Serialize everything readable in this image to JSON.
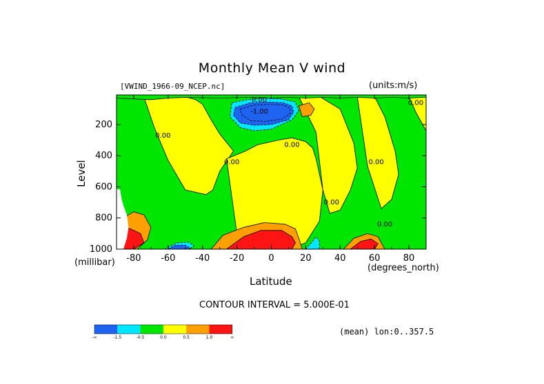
{
  "chart_data": {
    "type": "heatmap",
    "title": "Monthly Mean V wind",
    "file_label": "[VWIND_1966-09_NCEP.nc]",
    "units_label": "(units:m/s)",
    "xlabel": "Latitude",
    "x_unit_label": "(degrees_north)",
    "ylabel": "Level",
    "y_unit_label": "(millibar)",
    "x_ticks": [
      "-80",
      "-60",
      "-40",
      "-20",
      "0",
      "20",
      "40",
      "60",
      "80"
    ],
    "x_tick_values": [
      -80,
      -60,
      -40,
      -20,
      0,
      20,
      40,
      60,
      80
    ],
    "y_ticks": [
      "200",
      "400",
      "600",
      "800",
      "1000"
    ],
    "y_tick_values": [
      200,
      400,
      600,
      800,
      1000
    ],
    "xlim": [
      -90,
      90
    ],
    "ylim": [
      1000,
      10
    ],
    "contour_interval_text": "CONTOUR INTERVAL = 5.000E-01",
    "footer_text": "(mean) lon:0..357.5",
    "contour_labels": [
      {
        "text": "0.00",
        "x": -7,
        "y": 40
      },
      {
        "text": "-1.00",
        "x": -7,
        "y": 115
      },
      {
        "text": "0.00",
        "x": -63,
        "y": 270
      },
      {
        "text": "0.00",
        "x": -23,
        "y": 440
      },
      {
        "text": "0.00",
        "x": 12,
        "y": 330
      },
      {
        "text": "0.00",
        "x": 35,
        "y": 700
      },
      {
        "text": "0.00",
        "x": 61,
        "y": 440
      },
      {
        "text": "0.00",
        "x": 66,
        "y": 840
      },
      {
        "text": "0.00",
        "x": 84,
        "y": 60
      }
    ],
    "colorbar": {
      "colors": [
        "#1e64f0",
        "#00e6ff",
        "#00e600",
        "#ffff00",
        "#ffa000",
        "#ff1414"
      ],
      "tick_labels": [
        "-∞",
        "-1.5",
        "-0.5",
        "0.0",
        "0.5",
        "1.0",
        "∞"
      ]
    },
    "regions": [
      {
        "level": 0.0,
        "x": [
          -90,
          90,
          90,
          -90
        ],
        "y": [
          10,
          10,
          1000,
          1000
        ]
      },
      {
        "level": 0.0,
        "x": [
          -74,
          -56,
          -49,
          -44,
          -40,
          -35,
          -30,
          -22,
          -30,
          -34,
          -38,
          -50,
          -60,
          -68
        ],
        "y": [
          25,
          20,
          25,
          40,
          70,
          170,
          260,
          370,
          500,
          620,
          650,
          620,
          430,
          220
        ]
      },
      {
        "level": 0.0,
        "x": [
          -26,
          -15,
          -8,
          4,
          12,
          20,
          24,
          26,
          30,
          28,
          20,
          10,
          0,
          -12,
          -20
        ],
        "y": [
          420,
          370,
          330,
          300,
          285,
          310,
          350,
          420,
          620,
          820,
          960,
          1000,
          1000,
          1000,
          900
        ]
      },
      {
        "level": 0.0,
        "x": [
          16,
          28,
          40,
          48,
          50,
          46,
          40,
          34,
          30,
          26
        ],
        "y": [
          20,
          20,
          100,
          320,
          480,
          620,
          750,
          770,
          620,
          250
        ]
      },
      {
        "level": 0.0,
        "x": [
          50,
          60,
          66,
          72,
          74,
          70,
          64,
          56
        ],
        "y": [
          20,
          20,
          150,
          370,
          520,
          680,
          740,
          470
        ]
      },
      {
        "level": 0.0,
        "x": [
          80,
          90,
          90,
          84
        ],
        "y": [
          20,
          20,
          240,
          120
        ]
      },
      {
        "level": 0.0,
        "x": [
          -90,
          -80,
          -70,
          -60,
          -50,
          -30,
          -10,
          0,
          10,
          20,
          30,
          40,
          50,
          60,
          70,
          80,
          90,
          90,
          -90
        ],
        "y": [
          30,
          35,
          40,
          30,
          25,
          30,
          25,
          30,
          25,
          30,
          25,
          30,
          25,
          30,
          25,
          30,
          25,
          10,
          10
        ]
      },
      {
        "level": -0.5,
        "x": [
          -23,
          -14,
          -4,
          6,
          14,
          16,
          12,
          0,
          -10,
          -18,
          -24
        ],
        "y": [
          60,
          40,
          30,
          35,
          55,
          110,
          170,
          230,
          240,
          220,
          150
        ]
      },
      {
        "level": -1.5,
        "x": [
          -21,
          -12,
          -2,
          7,
          12,
          13,
          10,
          0,
          -10,
          -18,
          -22
        ],
        "y": [
          90,
          60,
          55,
          60,
          80,
          120,
          170,
          200,
          205,
          190,
          140
        ]
      },
      {
        "level": -1.5,
        "x": [
          -18,
          -10,
          0,
          7,
          11,
          11,
          6,
          -4,
          -12,
          -17
        ],
        "y": [
          100,
          75,
          70,
          75,
          95,
          130,
          165,
          180,
          175,
          140
        ]
      },
      {
        "level": 0.5,
        "x": [
          16,
          22,
          25,
          23,
          18
        ],
        "y": [
          80,
          60,
          100,
          140,
          150
        ]
      },
      {
        "level": 0.5,
        "x": [
          -35,
          -28,
          -16,
          -4,
          8,
          14,
          16,
          18,
          12,
          -30
        ],
        "y": [
          1000,
          910,
          860,
          830,
          840,
          870,
          930,
          1000,
          1000,
          1000
        ]
      },
      {
        "level": 1.0,
        "x": [
          -26,
          -16,
          -6,
          6,
          12,
          14,
          12,
          -26
        ],
        "y": [
          1000,
          920,
          880,
          880,
          920,
          960,
          1000,
          1000
        ]
      },
      {
        "level": -0.5,
        "x": [
          -62,
          -55,
          -48,
          -45,
          -48,
          -58
        ],
        "y": [
          1000,
          960,
          955,
          980,
          1000,
          1000
        ]
      },
      {
        "level": -1.5,
        "x": [
          -60,
          -56,
          -50,
          -47,
          -50
        ],
        "y": [
          1000,
          975,
          975,
          995,
          1000
        ]
      },
      {
        "level": -0.5,
        "x": [
          20,
          24,
          26,
          28,
          28,
          22
        ],
        "y": [
          1000,
          950,
          920,
          950,
          1000,
          1000
        ]
      },
      {
        "level": 0.5,
        "x": [
          42,
          48,
          56,
          62,
          64,
          66,
          60,
          42
        ],
        "y": [
          1000,
          930,
          900,
          920,
          960,
          1000,
          1000,
          1000
        ]
      },
      {
        "level": 1.0,
        "x": [
          46,
          52,
          58,
          62,
          60,
          48
        ],
        "y": [
          1000,
          950,
          935,
          965,
          1000,
          1000
        ]
      },
      {
        "level": 0.5,
        "x": [
          -90,
          -86,
          -80,
          -74,
          -70,
          -72,
          -78,
          -90
        ],
        "y": [
          780,
          800,
          760,
          780,
          860,
          940,
          1000,
          1000
        ]
      },
      {
        "level": 1.0,
        "x": [
          -90,
          -84,
          -80,
          -76,
          -74,
          -80,
          -90
        ],
        "y": [
          840,
          860,
          880,
          900,
          960,
          1000,
          1000
        ]
      },
      {
        "level": null,
        "x": [
          -90,
          -88,
          -87,
          -86,
          -84,
          -83,
          -84,
          -86,
          -90
        ],
        "y": [
          615,
          615,
          680,
          720,
          780,
          860,
          930,
          1000,
          1000
        ]
      }
    ]
  }
}
